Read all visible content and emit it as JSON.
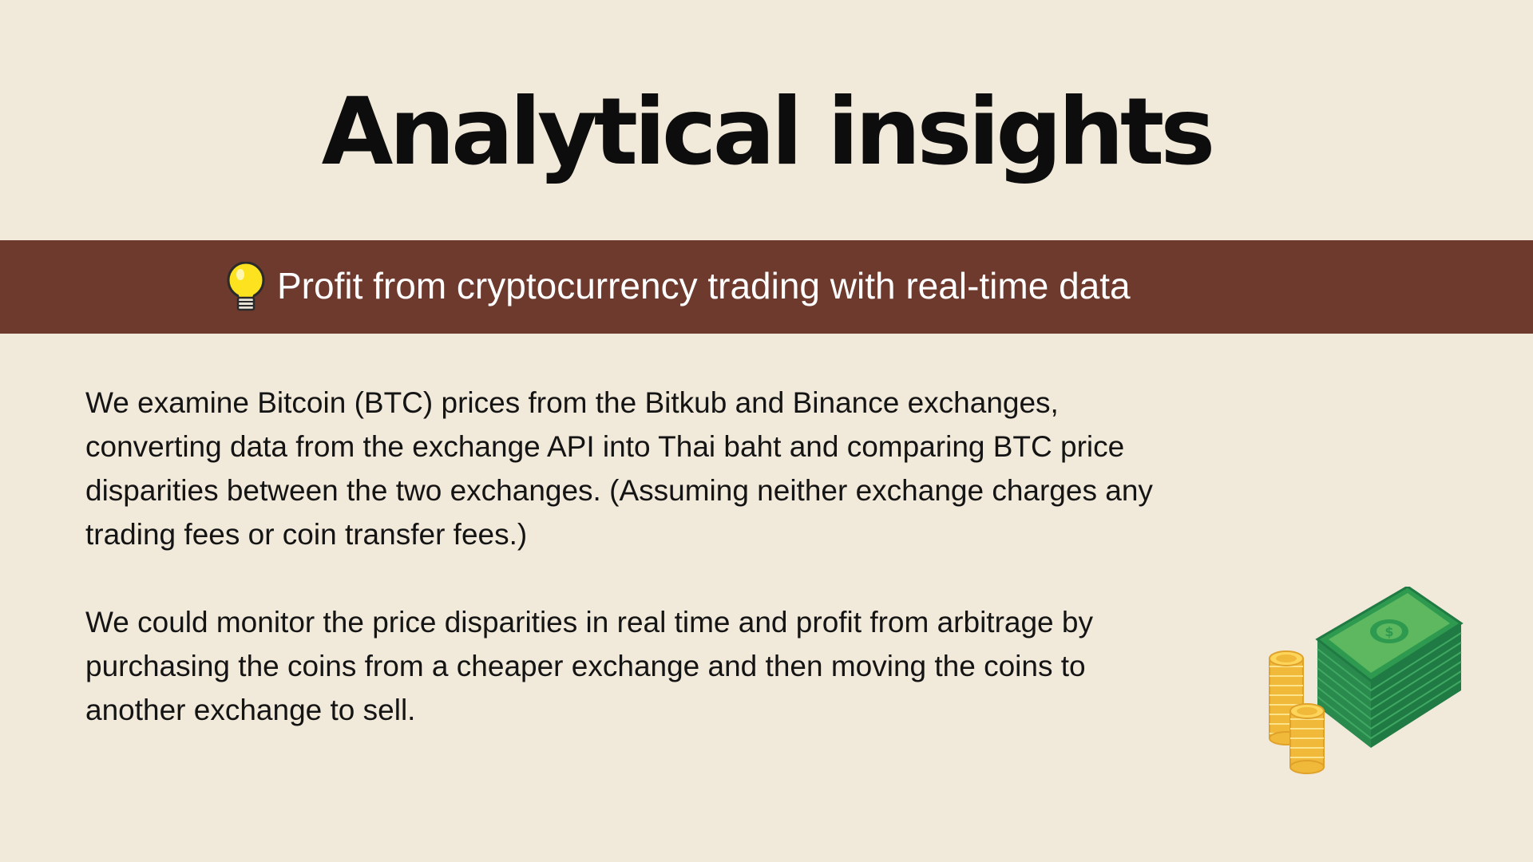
{
  "slide": {
    "title": "Analytical insights",
    "banner": {
      "icon": "lightbulb-icon",
      "text": "Profit from cryptocurrency trading with real-time data"
    },
    "paragraphs": [
      "We examine Bitcoin (BTC) prices from the Bitkub and Binance exchanges,\nconverting data from the exchange API into Thai baht and comparing BTC price\ndisparities between the two exchanges. (Assuming neither exchange charges any\ntrading fees or coin transfer fees.)",
      "We could monitor the price disparities in real time and profit from arbitrage by\npurchasing the coins from a cheaper exchange and then moving the coins to\nanother exchange to sell."
    ],
    "illustration": "money-stack-and-coins-icon"
  },
  "colors": {
    "background": "#f1e9d9",
    "banner": "#6e3a2d",
    "banner_text": "#ffffff",
    "body_text": "#141414",
    "money_green": "#2e8b4e",
    "coin_gold": "#f5c542"
  }
}
